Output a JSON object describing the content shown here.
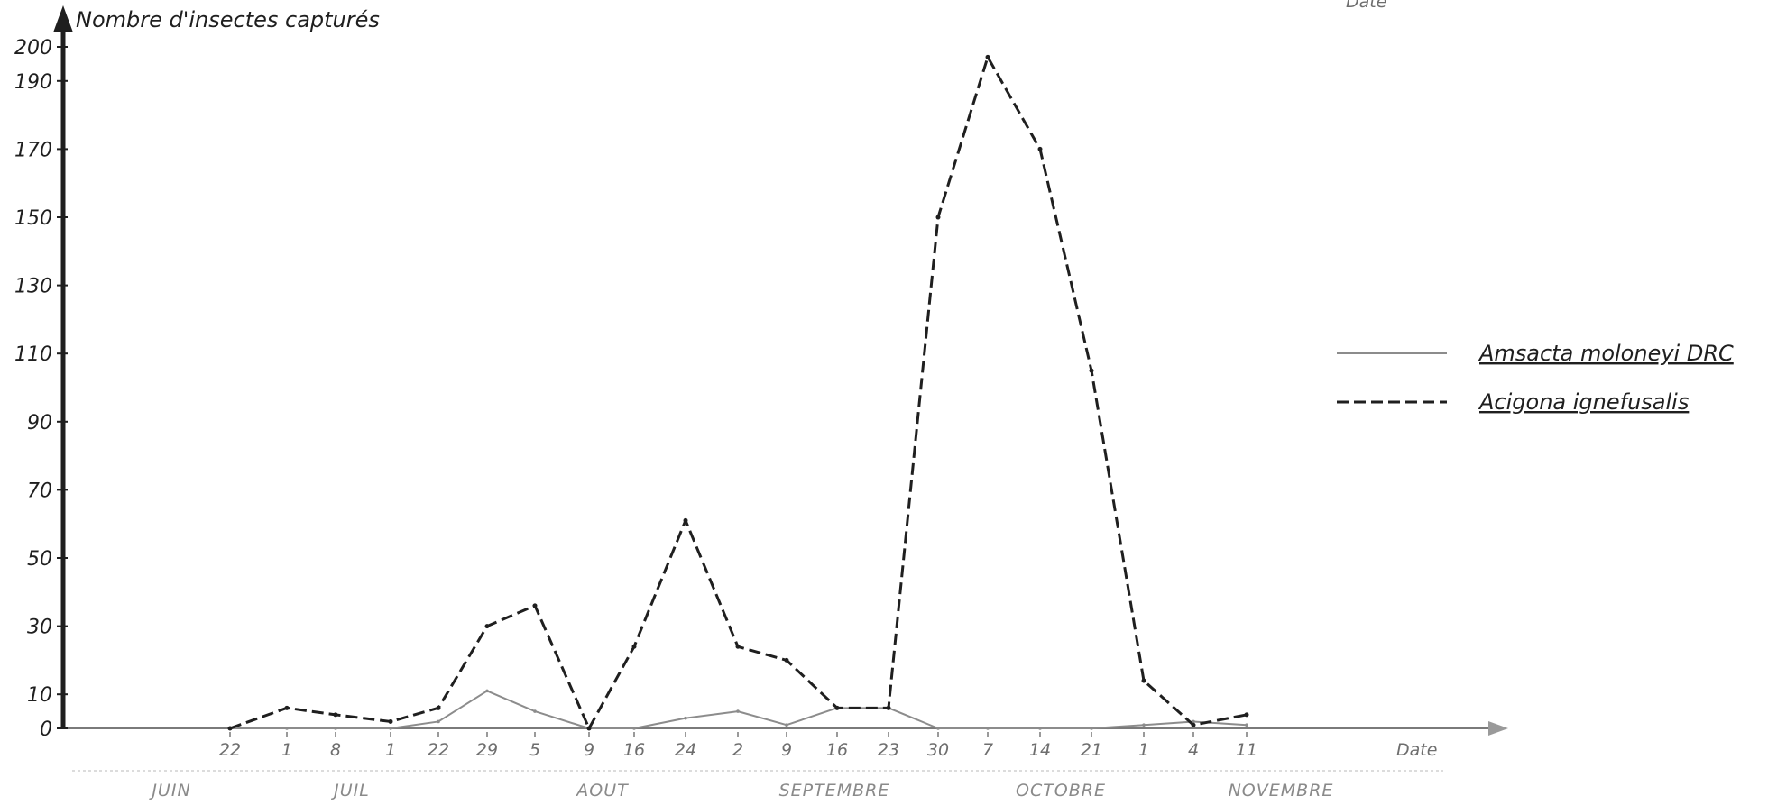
{
  "chart_data": {
    "type": "line",
    "ylabel": "Nombre d'insectes capturés",
    "xlabel": "Date",
    "corner_label": "Date",
    "ylim": [
      0,
      200
    ],
    "yticks": [
      0,
      10,
      30,
      50,
      70,
      90,
      110,
      130,
      150,
      170,
      190,
      200
    ],
    "x_ticks": [
      "22",
      "1",
      "8",
      "1",
      "22",
      "29",
      "5",
      "9",
      "16",
      "24",
      "2",
      "9",
      "16",
      "23",
      "30",
      "7",
      "14",
      "21",
      "1",
      "4",
      "11"
    ],
    "months": [
      "JUIN",
      "JUIL",
      "AOUT",
      "SEPTEMBRE",
      "OCTOBRE",
      "NOVEMBRE"
    ],
    "legend_placement": "right",
    "series": [
      {
        "name": "Amsacta moloneyi DRC",
        "style": "solid-light",
        "color": "#8c8c8c",
        "points": [
          [
            0,
            0
          ],
          [
            1,
            0
          ],
          [
            2,
            0
          ],
          [
            3,
            0
          ],
          [
            4,
            2
          ],
          [
            5,
            11
          ],
          [
            6,
            5
          ],
          [
            7,
            0
          ],
          [
            8,
            0
          ],
          [
            9,
            3
          ],
          [
            10,
            5
          ],
          [
            11,
            1
          ],
          [
            12,
            6
          ],
          [
            13,
            6
          ],
          [
            14,
            0
          ],
          [
            15,
            0
          ],
          [
            16,
            0
          ],
          [
            17,
            0
          ],
          [
            18,
            1
          ],
          [
            19,
            2
          ],
          [
            20,
            1
          ]
        ]
      },
      {
        "name": "Acigona ignefusalis",
        "style": "dashed",
        "color": "#1f1f1f",
        "points": [
          [
            0,
            0
          ],
          [
            1,
            6
          ],
          [
            2,
            4
          ],
          [
            3,
            2
          ],
          [
            4,
            6
          ],
          [
            5,
            30
          ],
          [
            6,
            36
          ],
          [
            7,
            0
          ],
          [
            8,
            24
          ],
          [
            9,
            61
          ],
          [
            10,
            24
          ],
          [
            11,
            20
          ],
          [
            12,
            6
          ],
          [
            13,
            6
          ],
          [
            14,
            150
          ],
          [
            15,
            197
          ],
          [
            16,
            170
          ],
          [
            17,
            105
          ],
          [
            18,
            14
          ],
          [
            19,
            1
          ],
          [
            20,
            4
          ]
        ]
      }
    ]
  }
}
